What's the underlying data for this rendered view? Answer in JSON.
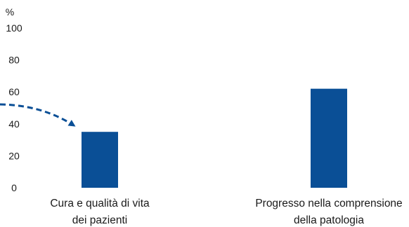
{
  "chart_data": {
    "type": "bar",
    "unit_label": "%",
    "categories": [
      [
        "Cura e qualità di vita",
        "dei pazienti"
      ],
      [
        "Progresso nella comprensione",
        "della patologia"
      ]
    ],
    "values": [
      35,
      62
    ],
    "ylim": [
      0,
      100
    ],
    "yticks": [
      0,
      20,
      40,
      60,
      80,
      100
    ],
    "bar_color": "#0a4f96",
    "arrow_color": "#0a4f96",
    "grid": false,
    "legend": "none",
    "annotation": "dashed arrow pointing to first bar"
  }
}
